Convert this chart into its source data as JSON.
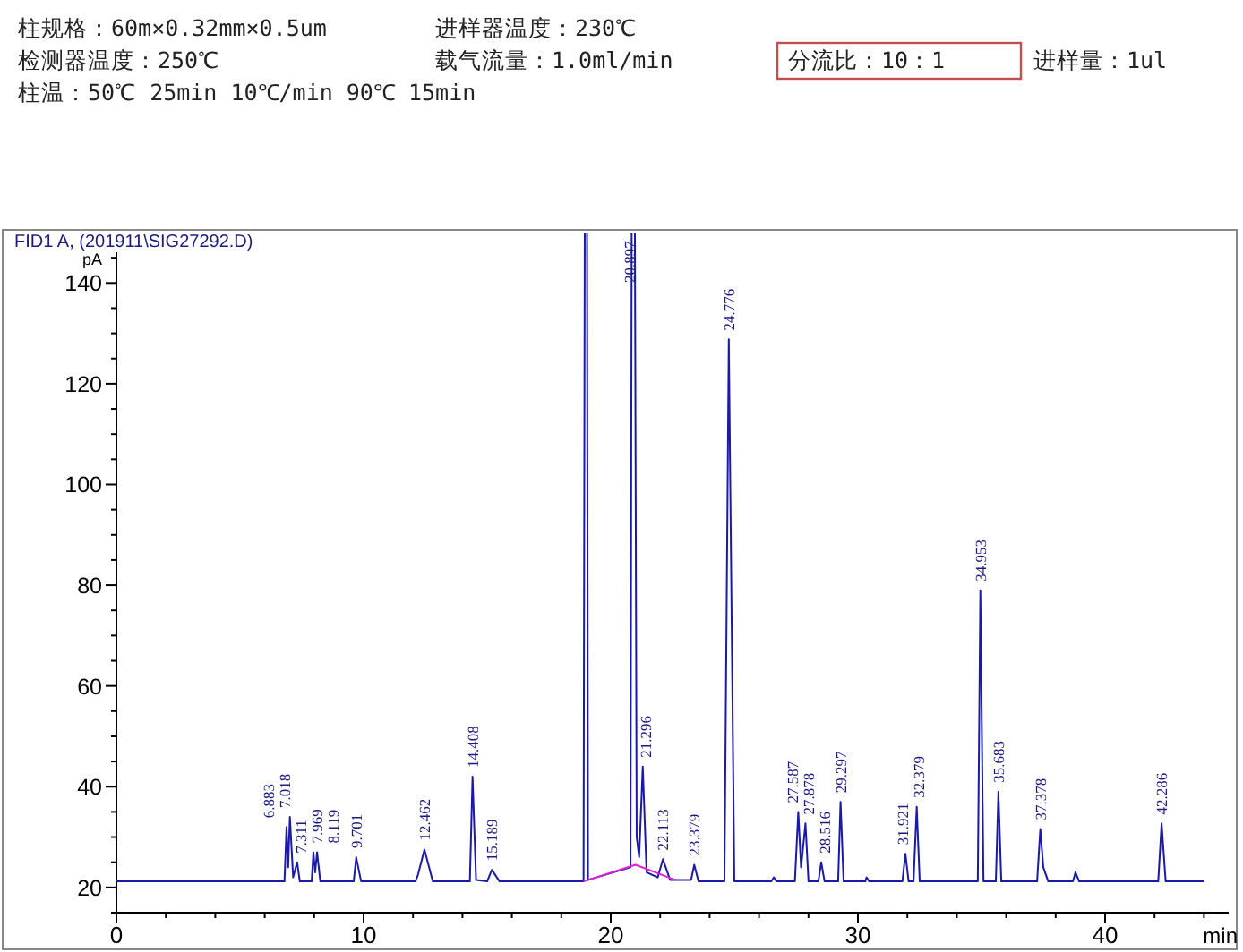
{
  "chart_data": {
    "type": "line",
    "title": "FID1 A, (201911\\SIG27292.D)",
    "xlabel": "min",
    "ylabel": "pA",
    "xlim": [
      0,
      45
    ],
    "ylim": [
      15,
      150
    ],
    "xticks": [
      0,
      {
        "value": 2,
        "label": null
      },
      {
        "value": 4,
        "label": null
      },
      {
        "value": 6,
        "label": null
      },
      {
        "value": 8,
        "label": null
      },
      10,
      {
        "value": 12,
        "label": null
      },
      {
        "value": 14,
        "label": null
      },
      {
        "value": 16,
        "label": null
      },
      {
        "value": 18,
        "label": null
      },
      20,
      {
        "value": 22,
        "label": null
      },
      {
        "value": 24,
        "label": null
      },
      {
        "value": 26,
        "label": null
      },
      {
        "value": 28,
        "label": null
      },
      30,
      {
        "value": 32,
        "label": null
      },
      {
        "value": 34,
        "label": null
      },
      {
        "value": 36,
        "label": null
      },
      {
        "value": 38,
        "label": null
      },
      40,
      {
        "value": 42,
        "label": null
      },
      {
        "value": 44,
        "label": null
      }
    ],
    "yticks": [
      {
        "value": 15,
        "label": null
      },
      20,
      {
        "value": 25,
        "label": null
      },
      {
        "value": 30,
        "label": null
      },
      {
        "value": 35,
        "label": null
      },
      40,
      {
        "value": 45,
        "label": null
      },
      {
        "value": 50,
        "label": null
      },
      {
        "value": 55,
        "label": null
      },
      60,
      {
        "value": 65,
        "label": null
      },
      {
        "value": 70,
        "label": null
      },
      {
        "value": 75,
        "label": null
      },
      80,
      {
        "value": 85,
        "label": null
      },
      {
        "value": 90,
        "label": null
      },
      {
        "value": 95,
        "label": null
      },
      100,
      {
        "value": 105,
        "label": null
      },
      {
        "value": 110,
        "label": null
      },
      {
        "value": 115,
        "label": null
      },
      120,
      {
        "value": 125,
        "label": null
      },
      {
        "value": 130,
        "label": null
      },
      {
        "value": 135,
        "label": null
      },
      140,
      {
        "value": 145,
        "label": null
      }
    ],
    "series": [
      {
        "color": "#1a1aa8",
        "x": [
          0,
          6.8,
          6.883,
          6.95,
          7.018,
          7.15,
          7.311,
          7.42,
          7.9,
          7.969,
          8.04,
          8.119,
          8.25,
          9.6,
          9.701,
          9.9,
          12.1,
          12.2,
          12.462,
          12.8,
          14.3,
          14.408,
          14.55,
          15.0,
          15.189,
          15.5,
          18.9,
          19.0,
          19.08,
          20.8,
          20.897,
          21.05,
          21.15,
          21.296,
          21.45,
          21.9,
          22.113,
          22.4,
          23.25,
          23.379,
          23.55,
          24.6,
          24.776,
          25.0,
          26.5,
          26.6,
          26.7,
          27.45,
          27.587,
          27.7,
          27.878,
          28.0,
          28.4,
          28.516,
          28.65,
          29.2,
          29.297,
          29.42,
          30.3,
          30.35,
          30.45,
          31.8,
          31.921,
          32.05,
          32.25,
          32.379,
          32.5,
          34.85,
          34.953,
          35.08,
          35.58,
          35.683,
          35.8,
          37.25,
          37.378,
          37.5,
          37.7,
          38.7,
          38.8,
          38.95,
          42.15,
          42.286,
          42.45,
          44.0
        ],
        "values": [
          21.2,
          21.2,
          32,
          24,
          34,
          22,
          25,
          21.2,
          21.2,
          27,
          23,
          27,
          21.2,
          21.2,
          26,
          21.2,
          21.2,
          22.5,
          27.5,
          21.2,
          21.2,
          42,
          21.5,
          21.2,
          23.5,
          21.2,
          21.2,
          null,
          21.5,
          24,
          null,
          30,
          26,
          44,
          23,
          22,
          25.6,
          21.5,
          21.5,
          24.5,
          21.2,
          21.2,
          128.8,
          21.2,
          21.2,
          22,
          21.2,
          21.2,
          35,
          24,
          32.7,
          21.2,
          21.2,
          25,
          21.2,
          21.2,
          37,
          21.2,
          21.2,
          22,
          21.2,
          21.2,
          26.7,
          21.2,
          21.2,
          36,
          21.2,
          21.2,
          79,
          21.2,
          21.2,
          39,
          21.2,
          21.2,
          31.6,
          24,
          21.2,
          21.2,
          23,
          21.2,
          21.2,
          32.7,
          21.2,
          21.2
        ]
      },
      {
        "color": "#e020e0",
        "x": [
          18.9,
          21.0,
          22.6
        ],
        "values": [
          21.2,
          24.5,
          21.5
        ]
      }
    ],
    "annotations": [
      "柱规格：60m×0.32mm×0.5um",
      "进样器温度：230℃",
      "检测器温度：250℃",
      "载气流量：1.0ml/min",
      "分流比：10：1",
      "进样量：1ul",
      "柱温：50℃ 25min  10℃/min 90℃ 15min",
      {
        "text": "6.883",
        "x": 6.883,
        "y": 32
      },
      {
        "text": "7.018",
        "x": 7.018,
        "y": 34
      },
      {
        "text": "7.311",
        "x": 7.311,
        "y": 25
      },
      {
        "text": "7.969",
        "x": 7.969,
        "y": 27
      },
      {
        "text": "8.119",
        "x": 8.119,
        "y": 27
      },
      {
        "text": "9.701",
        "x": 9.701,
        "y": 26
      },
      {
        "text": "12.462",
        "x": 12.462,
        "y": 27.5
      },
      {
        "text": "14.408",
        "x": 14.408,
        "y": 42
      },
      {
        "text": "15.189",
        "x": 15.189,
        "y": 23.5
      },
      {
        "text": "20.897",
        "x": 20.897
      },
      {
        "text": "21.296",
        "x": 21.296,
        "y": 44
      },
      {
        "text": "22.113",
        "x": 22.113,
        "y": 25.6
      },
      {
        "text": "23.379",
        "x": 23.379,
        "y": 24.5
      },
      {
        "text": "24.776",
        "x": 24.776,
        "y": 128.8
      },
      {
        "text": "27.587",
        "x": 27.587,
        "y": 35
      },
      {
        "text": "27.878",
        "x": 27.878,
        "y": 32.7
      },
      {
        "text": "28.516",
        "x": 28.516,
        "y": 25
      },
      {
        "text": "29.297",
        "x": 29.297,
        "y": 37
      },
      {
        "text": "31.921",
        "x": 31.921,
        "y": 26.7
      },
      {
        "text": "32.379",
        "x": 32.379,
        "y": 36
      },
      {
        "text": "34.953",
        "x": 34.953,
        "y": 79
      },
      {
        "text": "35.683",
        "x": 35.683,
        "y": 39
      },
      {
        "text": "37.378",
        "x": 37.378,
        "y": 31.6
      },
      {
        "text": "42.286",
        "x": 42.286,
        "y": 32.7
      }
    ]
  }
}
